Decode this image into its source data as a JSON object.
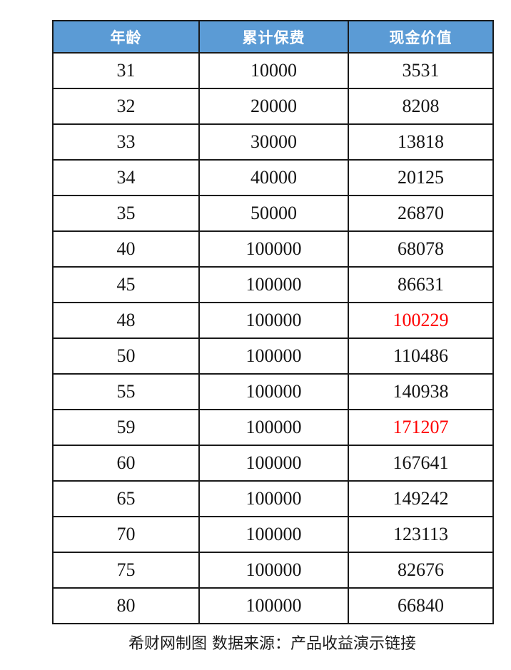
{
  "colors": {
    "header_bg": "#5b9bd5",
    "header_text": "#ffffff",
    "cell_text": "#141414",
    "highlight_text": "#ff0000",
    "border": "#1a1a1a",
    "page_bg": "#ffffff"
  },
  "chart_data": {
    "type": "table",
    "columns": [
      {
        "id": "age",
        "label": "年龄"
      },
      {
        "id": "premium",
        "label": "累计保费"
      },
      {
        "id": "cash_value",
        "label": "现金价值"
      }
    ],
    "rows": [
      {
        "age": "31",
        "premium": "10000",
        "cash_value": "3531",
        "cash_value_red": false
      },
      {
        "age": "32",
        "premium": "20000",
        "cash_value": "8208",
        "cash_value_red": false
      },
      {
        "age": "33",
        "premium": "30000",
        "cash_value": "13818",
        "cash_value_red": false
      },
      {
        "age": "34",
        "premium": "40000",
        "cash_value": "20125",
        "cash_value_red": false
      },
      {
        "age": "35",
        "premium": "50000",
        "cash_value": "26870",
        "cash_value_red": false
      },
      {
        "age": "40",
        "premium": "100000",
        "cash_value": "68078",
        "cash_value_red": false
      },
      {
        "age": "45",
        "premium": "100000",
        "cash_value": "86631",
        "cash_value_red": false
      },
      {
        "age": "48",
        "premium": "100000",
        "cash_value": "100229",
        "cash_value_red": true
      },
      {
        "age": "50",
        "premium": "100000",
        "cash_value": "110486",
        "cash_value_red": false
      },
      {
        "age": "55",
        "premium": "100000",
        "cash_value": "140938",
        "cash_value_red": false
      },
      {
        "age": "59",
        "premium": "100000",
        "cash_value": "171207",
        "cash_value_red": true
      },
      {
        "age": "60",
        "premium": "100000",
        "cash_value": "167641",
        "cash_value_red": false
      },
      {
        "age": "65",
        "premium": "100000",
        "cash_value": "149242",
        "cash_value_red": false
      },
      {
        "age": "70",
        "premium": "100000",
        "cash_value": "123113",
        "cash_value_red": false
      },
      {
        "age": "75",
        "premium": "100000",
        "cash_value": "82676",
        "cash_value_red": false
      },
      {
        "age": "80",
        "premium": "100000",
        "cash_value": "66840",
        "cash_value_red": false
      }
    ],
    "caption": "希财网制图 数据来源：产品收益演示链接"
  }
}
